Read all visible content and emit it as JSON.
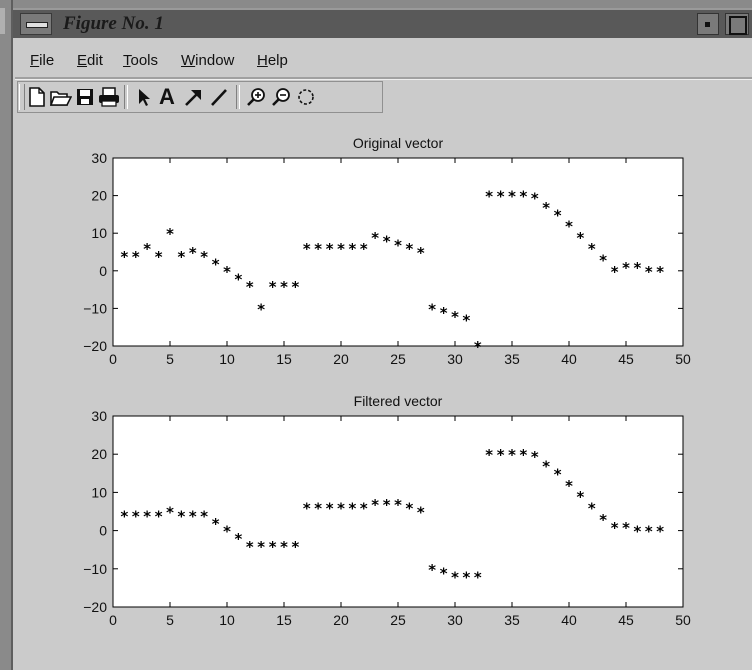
{
  "window": {
    "title": "Figure No. 1",
    "menus": [
      {
        "label": "File",
        "underline": "F",
        "rest": "ile"
      },
      {
        "label": "Edit",
        "underline": "E",
        "rest": "dit"
      },
      {
        "label": "Tools",
        "underline": "T",
        "rest": "ools"
      },
      {
        "label": "Window",
        "underline": "W",
        "rest": "indow"
      },
      {
        "label": "Help",
        "underline": "H",
        "rest": "elp"
      }
    ],
    "toolbar": [
      {
        "name": "new-figure-icon"
      },
      {
        "name": "open-folder-icon"
      },
      {
        "name": "save-icon"
      },
      {
        "name": "print-icon"
      },
      {
        "name": "select-arrow-icon"
      },
      {
        "name": "insert-text-icon",
        "text": "A"
      },
      {
        "name": "insert-arrow-icon"
      },
      {
        "name": "insert-line-icon"
      },
      {
        "name": "zoom-in-icon"
      },
      {
        "name": "zoom-out-icon"
      },
      {
        "name": "rotate-icon"
      }
    ]
  },
  "chart_data": [
    {
      "type": "scatter",
      "title": "Original vector",
      "marker": "*",
      "xlim": [
        0,
        50
      ],
      "ylim": [
        -20,
        30
      ],
      "xticks": [
        0,
        5,
        10,
        15,
        20,
        25,
        30,
        35,
        40,
        45,
        50
      ],
      "yticks": [
        -20,
        -10,
        0,
        10,
        20,
        30
      ],
      "x": [
        1,
        2,
        3,
        4,
        5,
        6,
        7,
        8,
        9,
        10,
        11,
        12,
        13,
        14,
        15,
        16,
        17,
        18,
        19,
        20,
        21,
        22,
        23,
        24,
        25,
        26,
        27,
        28,
        29,
        30,
        31,
        32,
        33,
        34,
        35,
        36,
        37,
        38,
        39,
        40,
        41,
        42,
        43,
        44,
        45,
        46,
        47,
        48
      ],
      "y": [
        4,
        4,
        6,
        4,
        10,
        4,
        5,
        4,
        2,
        0,
        -2,
        -4,
        -10,
        -4,
        -4,
        -4,
        6,
        6,
        6,
        6,
        6,
        6,
        9,
        8,
        7,
        6,
        5,
        -10,
        -11,
        -12,
        -13,
        -20,
        20,
        20,
        20,
        20,
        19.5,
        17,
        15,
        12,
        9,
        6,
        3,
        0,
        1,
        1,
        0,
        0
      ]
    },
    {
      "type": "scatter",
      "title": "Filtered vector",
      "marker": "*",
      "xlim": [
        0,
        50
      ],
      "ylim": [
        -20,
        30
      ],
      "xticks": [
        0,
        5,
        10,
        15,
        20,
        25,
        30,
        35,
        40,
        45,
        50
      ],
      "yticks": [
        -20,
        -10,
        0,
        10,
        20,
        30
      ],
      "x": [
        1,
        2,
        3,
        4,
        5,
        6,
        7,
        8,
        9,
        10,
        11,
        12,
        13,
        14,
        15,
        16,
        17,
        18,
        19,
        20,
        21,
        22,
        23,
        24,
        25,
        26,
        27,
        28,
        29,
        30,
        31,
        32,
        33,
        34,
        35,
        36,
        37,
        38,
        39,
        40,
        41,
        42,
        43,
        44,
        45,
        46,
        47,
        48
      ],
      "y": [
        4,
        4,
        4,
        4,
        5,
        4,
        4,
        4,
        2,
        0,
        -2,
        -4,
        -4,
        -4,
        -4,
        -4,
        6,
        6,
        6,
        6,
        6,
        6,
        7,
        7,
        7,
        6,
        5,
        -10,
        -11,
        -12,
        -12,
        -12,
        20,
        20,
        20,
        20,
        19.5,
        17,
        15,
        12,
        9,
        6,
        3,
        1,
        1,
        0,
        0,
        0
      ]
    }
  ]
}
